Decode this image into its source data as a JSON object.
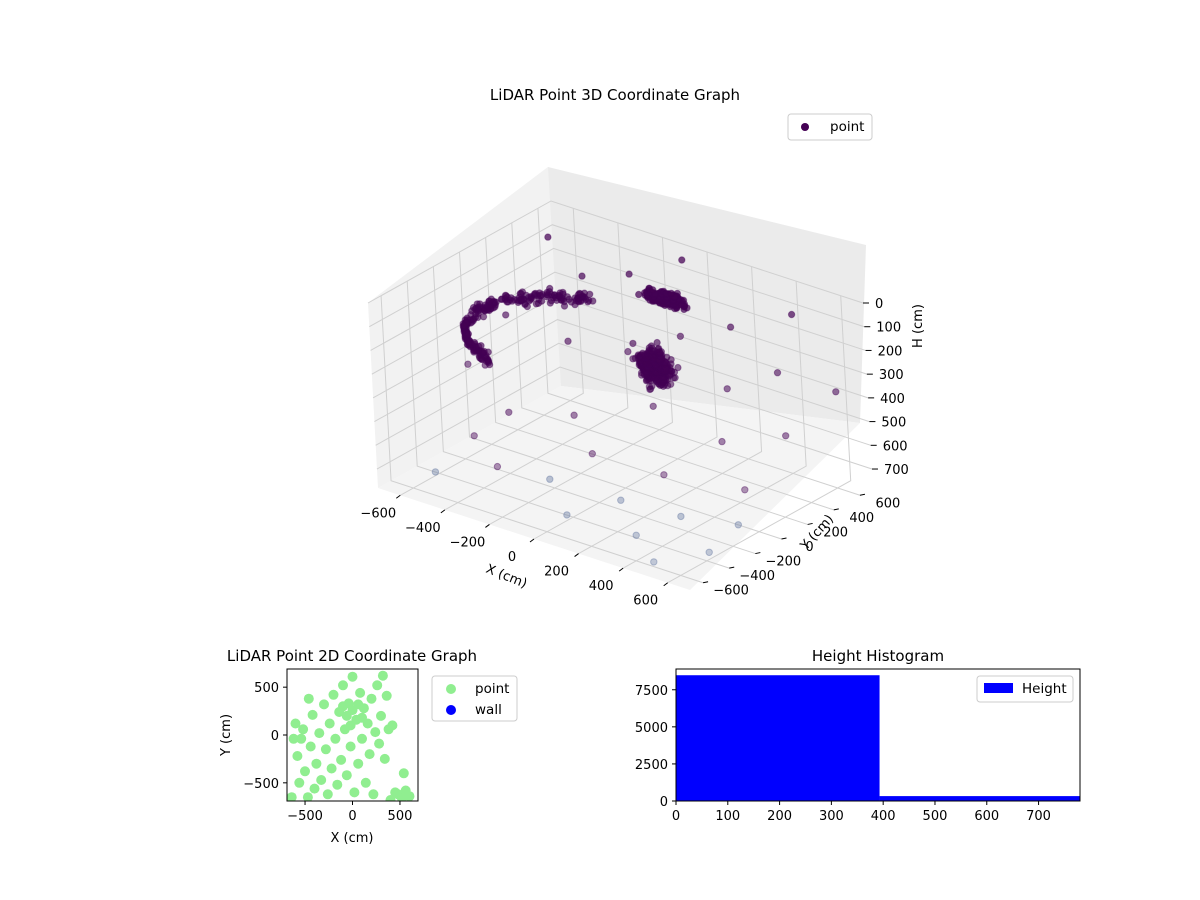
{
  "chart_data": [
    {
      "type": "scatter3d",
      "title": "LiDAR Point 3D Coordinate Graph",
      "xlabel": "X (cm)",
      "ylabel": "Y (cm)",
      "zlabel": "H (cm)",
      "xlim": [
        -700,
        700
      ],
      "ylim": [
        -700,
        700
      ],
      "zlim": [
        0,
        780
      ],
      "z_inverted": true,
      "x_ticks": [
        "−600",
        "−400",
        "−200",
        "0",
        "200",
        "400",
        "600"
      ],
      "y_ticks": [
        "−600",
        "−400",
        "−200",
        "0",
        "200",
        "400",
        "600"
      ],
      "z_ticks": [
        "0",
        "100",
        "200",
        "300",
        "400",
        "500",
        "600",
        "700"
      ],
      "grid": true,
      "legend": {
        "position": "top-right",
        "entries": [
          "point"
        ]
      },
      "series": [
        {
          "name": "point",
          "color": "#440154",
          "clusters": [
            {
              "x": 40,
              "y": 300,
              "h": 60,
              "sx": 170,
              "sy": 70,
              "sh": 40,
              "n": 300
            },
            {
              "x": 30,
              "y": 220,
              "h": 330,
              "sx": 140,
              "sy": 70,
              "sh": 130,
              "n": 500
            },
            {
              "arc_center_x": -200,
              "arc_center_y": 0,
              "radius": 420,
              "from_deg": 110,
              "to_deg": 250,
              "h": 220,
              "n": 260
            }
          ],
          "scattered": [
            {
              "x": -640,
              "y": -80,
              "h": 430
            },
            {
              "x": -560,
              "y": 90,
              "h": 250
            },
            {
              "x": -500,
              "y": -180,
              "h": 360
            },
            {
              "x": -470,
              "y": 260,
              "h": 180
            },
            {
              "x": -420,
              "y": -420,
              "h": 560
            },
            {
              "x": -380,
              "y": 380,
              "h": 120
            },
            {
              "x": -330,
              "y": -300,
              "h": 470
            },
            {
              "x": -300,
              "y": 120,
              "h": 290
            },
            {
              "x": -260,
              "y": -520,
              "h": 610
            },
            {
              "x": -220,
              "y": 470,
              "h": 90
            },
            {
              "x": -180,
              "y": -60,
              "h": 510
            },
            {
              "x": -140,
              "y": 300,
              "h": 340
            },
            {
              "x": -110,
              "y": -380,
              "h": 660
            },
            {
              "x": -60,
              "y": 560,
              "h": 150
            },
            {
              "x": -20,
              "y": -200,
              "h": 580
            },
            {
              "x": 30,
              "y": 420,
              "h": 260
            },
            {
              "x": 70,
              "y": -560,
              "h": 700
            },
            {
              "x": 110,
              "y": 60,
              "h": 420
            },
            {
              "x": 160,
              "y": -300,
              "h": 690
            },
            {
              "x": 200,
              "y": 520,
              "h": 200
            },
            {
              "x": 240,
              "y": -100,
              "h": 620
            },
            {
              "x": 280,
              "y": 340,
              "h": 380
            },
            {
              "x": 320,
              "y": -460,
              "h": 740
            },
            {
              "x": 360,
              "y": 150,
              "h": 520
            },
            {
              "x": 400,
              "y": -250,
              "h": 700
            },
            {
              "x": 440,
              "y": 460,
              "h": 300
            },
            {
              "x": 480,
              "y": -600,
              "h": 760
            },
            {
              "x": 520,
              "y": 40,
              "h": 640
            },
            {
              "x": 560,
              "y": 300,
              "h": 480
            },
            {
              "x": 600,
              "y": -380,
              "h": 750
            },
            {
              "x": 640,
              "y": 560,
              "h": 350
            },
            {
              "x": -600,
              "y": 500,
              "h": 60
            },
            {
              "x": -520,
              "y": -560,
              "h": 700
            },
            {
              "x": 420,
              "y": 620,
              "h": 110
            },
            {
              "x": 580,
              "y": -120,
              "h": 720
            },
            {
              "x": -80,
              "y": 640,
              "h": 40
            }
          ]
        }
      ]
    },
    {
      "type": "scatter",
      "title": "LiDAR Point 2D Coordinate Graph",
      "xlabel": "X (cm)",
      "ylabel": "Y (cm)",
      "xlim": [
        -690,
        690
      ],
      "ylim": [
        -690,
        690
      ],
      "x_ticks": [
        -500,
        0,
        500
      ],
      "y_ticks": [
        -500,
        0,
        500
      ],
      "legend": {
        "position": "outside-right",
        "entries": [
          "point",
          "wall"
        ]
      },
      "series": [
        {
          "name": "point",
          "color": "#90ee90",
          "points": [
            [
              -620,
              -40
            ],
            [
              -580,
              -220
            ],
            [
              -560,
              -500
            ],
            [
              -520,
              60
            ],
            [
              -500,
              -380
            ],
            [
              -470,
              -650
            ],
            [
              -440,
              -120
            ],
            [
              -420,
              210
            ],
            [
              -400,
              -560
            ],
            [
              -380,
              -300
            ],
            [
              -350,
              20
            ],
            [
              -330,
              -470
            ],
            [
              -300,
              320
            ],
            [
              -280,
              -150
            ],
            [
              -260,
              -620
            ],
            [
              -240,
              120
            ],
            [
              -220,
              -350
            ],
            [
              -200,
              420
            ],
            [
              -180,
              -40
            ],
            [
              -160,
              -520
            ],
            [
              -140,
              240
            ],
            [
              -120,
              -260
            ],
            [
              -100,
              520
            ],
            [
              -80,
              60
            ],
            [
              -60,
              -420
            ],
            [
              -40,
              330
            ],
            [
              -20,
              -120
            ],
            [
              0,
              610
            ],
            [
              20,
              -600
            ],
            [
              40,
              160
            ],
            [
              60,
              -300
            ],
            [
              80,
              440
            ],
            [
              100,
              -40
            ],
            [
              120,
              280
            ],
            [
              140,
              -500
            ],
            [
              160,
              120
            ],
            [
              180,
              -200
            ],
            [
              200,
              380
            ],
            [
              220,
              -620
            ],
            [
              240,
              30
            ],
            [
              260,
              520
            ],
            [
              280,
              -90
            ],
            [
              300,
              200
            ],
            [
              320,
              620
            ],
            [
              340,
              -250
            ],
            [
              360,
              410
            ],
            [
              380,
              60
            ],
            [
              400,
              -680
            ],
            [
              420,
              100
            ],
            [
              450,
              -600
            ],
            [
              480,
              -620
            ],
            [
              520,
              -660
            ],
            [
              560,
              -580
            ],
            [
              600,
              -640
            ],
            [
              540,
              -400
            ],
            [
              -640,
              -650
            ],
            [
              -600,
              120
            ],
            [
              -540,
              -40
            ],
            [
              -460,
              380
            ],
            [
              -100,
              300
            ],
            [
              -60,
              200
            ],
            [
              0,
              260
            ],
            [
              60,
              320
            ],
            [
              -20,
              100
            ],
            [
              100,
              180
            ]
          ]
        },
        {
          "name": "wall",
          "color": "#0000ff",
          "points": []
        }
      ]
    },
    {
      "type": "bar",
      "title": "Height Histogram",
      "xlabel": "",
      "ylabel": "",
      "xlim": [
        0,
        780
      ],
      "ylim": [
        0,
        8900
      ],
      "x_ticks": [
        0,
        100,
        200,
        300,
        400,
        500,
        600,
        700
      ],
      "y_ticks": [
        0,
        2500,
        5000,
        7500
      ],
      "bins": [
        [
          0,
          393,
          8480
        ],
        [
          393,
          780,
          330
        ]
      ],
      "color": "#0000ff",
      "legend": {
        "position": "upper-right",
        "entries": [
          "Height"
        ]
      },
      "series": [
        {
          "name": "Height"
        }
      ]
    }
  ]
}
